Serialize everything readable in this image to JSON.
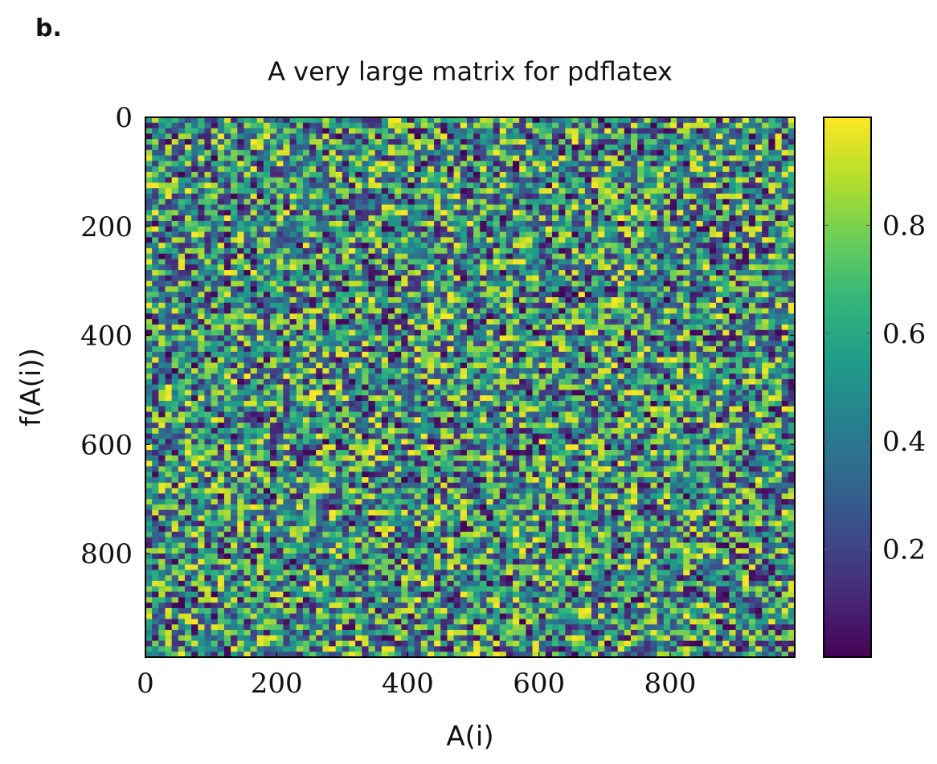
{
  "panel_label": "b.",
  "chart_data": {
    "type": "heatmap",
    "title": "A very large matrix for pdflatex",
    "xlabel": "A(i)",
    "ylabel": "f(A(i))",
    "xlim": [
      0,
      990
    ],
    "ylim": [
      990,
      0
    ],
    "x_ticks": [
      "0",
      "200",
      "400",
      "600",
      "800"
    ],
    "x_tick_values": [
      0,
      200,
      400,
      600,
      800
    ],
    "y_ticks": [
      "0",
      "200",
      "400",
      "600",
      "800"
    ],
    "y_tick_values": [
      0,
      200,
      400,
      600,
      800
    ],
    "colorbar": {
      "range": [
        0.0,
        1.0
      ],
      "ticks": [
        "0.2",
        "0.4",
        "0.6",
        "0.8"
      ],
      "tick_values": [
        0.2,
        0.4,
        0.6,
        0.8
      ],
      "colormap": "viridis"
    },
    "grid": {
      "rows": 99,
      "cols": 99
    },
    "value_distribution": "uniform random in [0, 1]",
    "colors": [
      "#440154",
      "#482878",
      "#3e4989",
      "#31688e",
      "#26828e",
      "#1f9e89",
      "#35b779",
      "#6ece58",
      "#b5de2b",
      "#fde725"
    ]
  }
}
